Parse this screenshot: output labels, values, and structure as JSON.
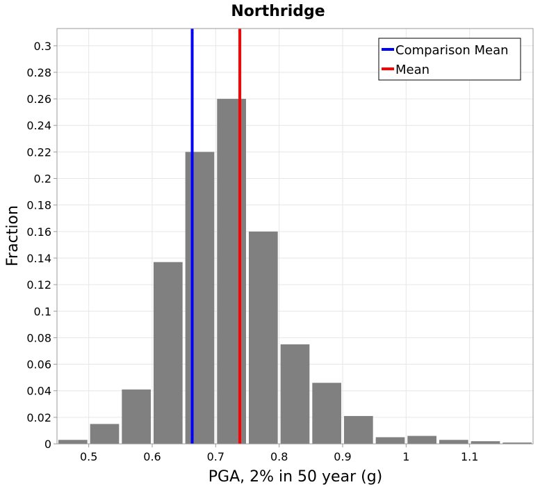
{
  "chart_data": {
    "type": "bar",
    "title": "Northridge",
    "xlabel": "PGA, 2% in 50 year (g)",
    "ylabel": "Fraction",
    "xlim": [
      0.45,
      1.2
    ],
    "ylim": [
      0,
      0.313
    ],
    "bin_width": 0.05,
    "x_ticks": [
      0.5,
      0.6,
      0.7,
      0.8,
      0.9,
      1,
      1.1
    ],
    "y_ticks": [
      0,
      0.02,
      0.04,
      0.06,
      0.08,
      0.1,
      0.12,
      0.14,
      0.16,
      0.18,
      0.2,
      0.22,
      0.24,
      0.26,
      0.28,
      0.3
    ],
    "grid": true,
    "bar_color": "#808080",
    "bins": [
      {
        "center": 0.475,
        "value": 0.003
      },
      {
        "center": 0.525,
        "value": 0.015
      },
      {
        "center": 0.575,
        "value": 0.041
      },
      {
        "center": 0.625,
        "value": 0.137
      },
      {
        "center": 0.675,
        "value": 0.22
      },
      {
        "center": 0.725,
        "value": 0.26
      },
      {
        "center": 0.775,
        "value": 0.16
      },
      {
        "center": 0.825,
        "value": 0.075
      },
      {
        "center": 0.875,
        "value": 0.046
      },
      {
        "center": 0.925,
        "value": 0.021
      },
      {
        "center": 0.975,
        "value": 0.005
      },
      {
        "center": 1.025,
        "value": 0.006
      },
      {
        "center": 1.075,
        "value": 0.003
      },
      {
        "center": 1.125,
        "value": 0.002
      },
      {
        "center": 1.175,
        "value": 0.001
      }
    ],
    "lines": [
      {
        "name": "Comparison Mean",
        "x": 0.663,
        "color": "#0000ff"
      },
      {
        "name": "Mean",
        "x": 0.738,
        "color": "#ff0000"
      }
    ],
    "legend": {
      "position": "top-right",
      "entries": [
        {
          "label": "Comparison Mean",
          "color": "#0000ff"
        },
        {
          "label": "Mean",
          "color": "#ff0000"
        }
      ]
    }
  }
}
